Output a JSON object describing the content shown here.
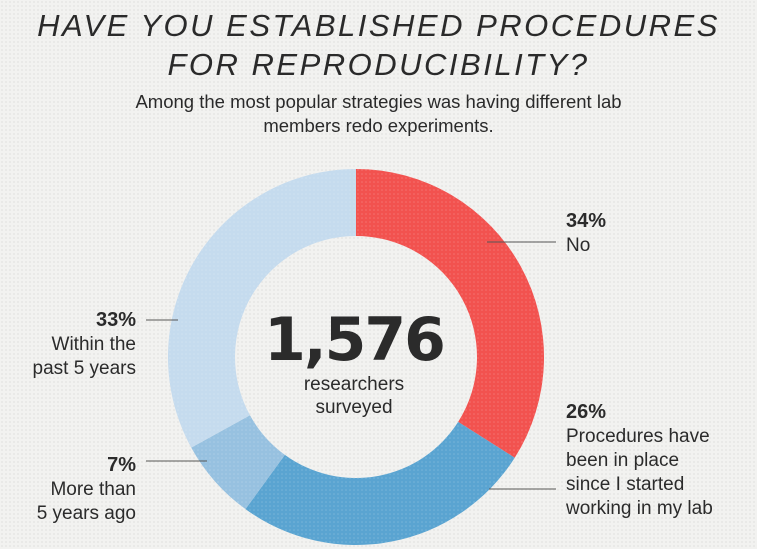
{
  "chart_data": {
    "type": "pie",
    "title_lines": [
      "HAVE YOU ESTABLISHED PROCEDURES",
      "FOR REPRODUCIBILITY?"
    ],
    "subtitle_lines": [
      "Among the most popular strategies was having different lab",
      "members redo experiments."
    ],
    "center": {
      "number": "1,576",
      "label_lines": [
        "researchers",
        "surveyed"
      ]
    },
    "slices": [
      {
        "value": 34,
        "pct_label": "34%",
        "label_lines": [
          "No"
        ],
        "color": "#f2524f"
      },
      {
        "value": 26,
        "pct_label": "26%",
        "label_lines": [
          "Procedures have",
          "been in place",
          "since I started",
          "working in my lab"
        ],
        "color": "#5aa4d1"
      },
      {
        "value": 7,
        "pct_label": "7%",
        "label_lines": [
          "More than",
          "5 years ago"
        ],
        "color": "#97c1e0"
      },
      {
        "value": 33,
        "pct_label": "33%",
        "label_lines": [
          "Within the",
          "past 5 years"
        ],
        "color": "#c5dbee"
      }
    ]
  }
}
